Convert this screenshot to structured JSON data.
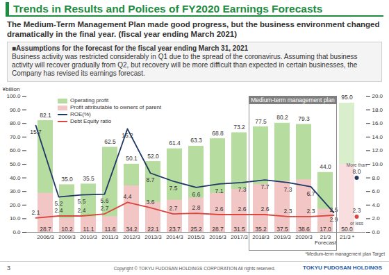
{
  "page": {
    "title": "Trends in Results and Polices of FY2020 Earnings Forecasts",
    "subtitle": "The Medium-Term Management Plan made good progress, but the business environment changed dramatically in the final year. (fiscal year ending March 2021)",
    "assumptions_heading": "■Assumptions for the forecast for the fiscal year ending March 31, 2021",
    "assumptions_text": "Business activity was restricted considerably in Q1 due to the spread of the coronavirus. Assuming that business activity will recover gradually from Q2, but recovery will be more difficult than expected in certain businesses, the Company has revised its earnings forecast.",
    "page_number": "3",
    "copyright": "Copyright © TOKYU FUDOSAN HOLDINGS CORPORATION All rights reserved.",
    "logo": "TOKYU FUDOSAN HOLDINGS"
  },
  "chart_data": {
    "type": "bar",
    "categories": [
      "2006/3",
      "2009/3",
      "2010/3",
      "2011/3",
      "2012/3",
      "2013/3",
      "2014/3",
      "2015/3",
      "2016/3",
      "2017/3",
      "2018/3",
      "2019/3",
      "2020/3",
      "21/3\nForecast",
      "21/3 *"
    ],
    "ylabel": "¥billion",
    "ylim": [
      0,
      100
    ],
    "yticks": [
      {
        "value": 0,
        "label": "0.0"
      },
      {
        "value": 10,
        "label": "10.0"
      },
      {
        "value": 20,
        "label": "20.0"
      },
      {
        "value": 30,
        "label": "30.0"
      },
      {
        "value": 40,
        "label": "40.0"
      },
      {
        "value": 50,
        "label": "50.0"
      },
      {
        "value": 60,
        "label": "60.0"
      },
      {
        "value": 70,
        "label": "70.0"
      },
      {
        "value": 80,
        "label": "80.0"
      },
      {
        "value": 90,
        "label": "90.0"
      },
      {
        "value": 100,
        "label": "100.0"
      }
    ],
    "y2lim": [
      0,
      20
    ],
    "y2ticks": [
      {
        "value": 0,
        "label": "0.0"
      },
      {
        "value": 2,
        "label": "2.0"
      },
      {
        "value": 4,
        "label": "4.0"
      },
      {
        "value": 6,
        "label": "6.0"
      },
      {
        "value": 8,
        "label": "8.0"
      },
      {
        "value": 10,
        "label": "10.0"
      },
      {
        "value": 12,
        "label": "12.0"
      },
      {
        "value": 14,
        "label": "14.0"
      },
      {
        "value": 16,
        "label": "16.0"
      },
      {
        "value": 18,
        "label": "18.0"
      },
      {
        "value": 20,
        "label": "20.0"
      }
    ],
    "grid": false,
    "legend": "top-left",
    "data_labels": true,
    "series": [
      {
        "name": "Operating profit",
        "type": "bar",
        "color": "#b7dc9f",
        "colors": [
          "#b7dc9f",
          "#b7dc9f",
          "#b7dc9f",
          "#b7dc9f",
          "#b7dc9f",
          "#b7dc9f",
          "#b7dc9f",
          "#b7dc9f",
          "#b7dc9f",
          "#b7dc9f",
          "#b7dc9f",
          "#b7dc9f",
          "#b7dc9f",
          "#b7dc9f",
          "#d9eecb"
        ],
        "values": [
          82.1,
          35.0,
          35.5,
          62.5,
          50.1,
          52.0,
          61.4,
          63.3,
          68.8,
          73.2,
          77.5,
          80.2,
          79.3,
          44.0,
          95.0
        ],
        "value_labels": [
          "82.1",
          "35.0",
          "35.5",
          "62.5",
          "50.1",
          "52.0",
          "61.4",
          "63.3",
          "68.8",
          "73.2",
          "77.5",
          "80.2",
          "79.3",
          "44.0",
          "95.0"
        ]
      },
      {
        "name": "Profit attributable to owners of parent",
        "type": "bar",
        "color": "#f3c6c6",
        "colors": [
          "#f3c6c6",
          "#f3c6c6",
          "#f3c6c6",
          "#f3c6c6",
          "#f3c6c6",
          "#f3c6c6",
          "#f3c6c6",
          "#f3c6c6",
          "#f3c6c6",
          "#f3c6c6",
          "#f3c6c6",
          "#f3c6c6",
          "#f3c6c6",
          "#f3c6c6",
          "#f8dede"
        ],
        "values": [
          28.7,
          10.2,
          11.1,
          11.6,
          34.2,
          22.1,
          23.7,
          25.2,
          28.7,
          31.5,
          35.2,
          37.5,
          38.6,
          17.0,
          50.0
        ],
        "value_labels": [
          "28.7",
          "10.2",
          "11.1",
          "11.6",
          "34.2",
          "22.1",
          "23.7",
          "25.2",
          "28.7",
          "31.5",
          "35.2",
          "37.5",
          "38.6",
          "17.0",
          "50.0"
        ]
      },
      {
        "name": "ROE(%)",
        "type": "line",
        "axis": "y2",
        "color": "#1f3864",
        "values": [
          15.7,
          5.2,
          5.5,
          5.6,
          15.2,
          8.7,
          7.5,
          6.6,
          7.1,
          7.3,
          7.7,
          7.3,
          6.7,
          2.9,
          null
        ],
        "value_labels": [
          "15.7",
          "5.2",
          "5.5",
          "5.6",
          "15.2",
          "8.7",
          "7.5",
          "6.6",
          "7.1",
          "7.3",
          "7.7",
          "7.3",
          "6.7",
          "2.9",
          null
        ]
      },
      {
        "name": "Debt Equity ratio",
        "type": "line",
        "axis": "y2",
        "color": "#d9453f",
        "values": [
          2.1,
          2.4,
          2.4,
          2.7,
          4.4,
          3.6,
          2.7,
          2.8,
          2.6,
          2.6,
          2.6,
          2.3,
          2.3,
          2.5,
          null
        ],
        "value_labels": [
          "2.1",
          "2.4",
          "2.4",
          "2.7",
          "4.4",
          "3.6",
          "2.7",
          "2.8",
          "2.6",
          "2.6",
          "2.6",
          "2.3",
          "2.3",
          "2.5",
          null
        ]
      }
    ],
    "targets": [
      {
        "series": "ROE(%)",
        "category": "21/3 *",
        "value": 8.0,
        "value_label": "8.0",
        "note": "More than",
        "marker": "dot"
      },
      {
        "series": "Debt Equity ratio",
        "category": "21/3 *",
        "value": 2.3,
        "value_label": "2.3",
        "note": "or less",
        "marker": "dot"
      }
    ],
    "highlight": {
      "label": "Medium-term management plan",
      "from": "2018/3",
      "to": "21/3\nForecast"
    },
    "footnote": "*Medium-term management plan Target"
  }
}
